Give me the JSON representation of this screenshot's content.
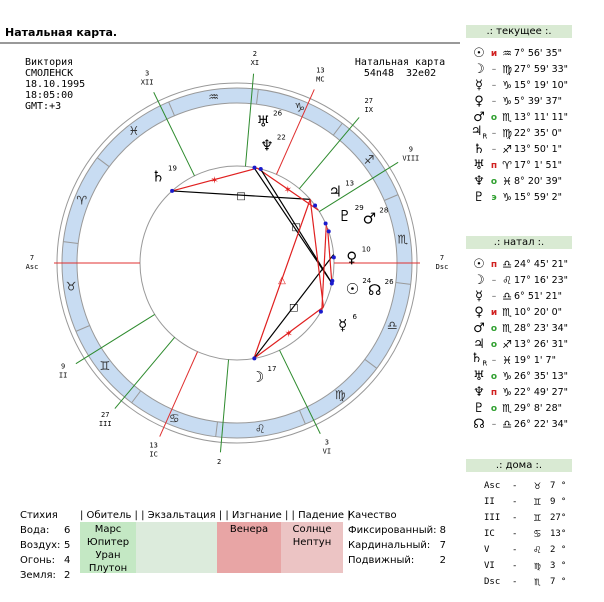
{
  "title": "Натальная карта.",
  "person": {
    "name": "Виктория",
    "city": "СМОЛЕНСК",
    "date": "18.10.1995",
    "time": "18:05:00",
    "gmt": "GMT:+3"
  },
  "chart_header": {
    "label": "Натальная карта",
    "coords": "54n48  32e02"
  },
  "colors": {
    "band": "#c8dcf2",
    "house_line": "#2e8b2e",
    "axis_line": "#e03030",
    "aspect_red": "#e02020",
    "aspect_black": "#000000",
    "panel_header": "#d9ead3"
  },
  "asc_longitude": 37,
  "signs": [
    "♈",
    "♉",
    "♊",
    "♋",
    "♌",
    "♍",
    "♎",
    "♏",
    "♐",
    "♑",
    "♒",
    "♓"
  ],
  "houses": [
    {
      "label": "Asc",
      "deg": "7",
      "lon": 37,
      "axis": true
    },
    {
      "label": "II",
      "deg": "9",
      "lon": 69
    },
    {
      "label": "III",
      "deg": "27",
      "lon": 87
    },
    {
      "label": "IC",
      "deg": "13",
      "lon": 103,
      "axis": true
    },
    {
      "label": "V",
      "deg": "2",
      "lon": 122
    },
    {
      "label": "VI",
      "deg": "3",
      "lon": 153
    },
    {
      "label": "Dsc",
      "deg": "7",
      "lon": 217,
      "axis": true
    },
    {
      "label": "VIII",
      "deg": "9",
      "lon": 249
    },
    {
      "label": "IX",
      "deg": "27",
      "lon": 267
    },
    {
      "label": "MC",
      "deg": "13",
      "lon": 283,
      "axis": true
    },
    {
      "label": "XI",
      "deg": "2",
      "lon": 302
    },
    {
      "label": "XII",
      "deg": "3",
      "lon": 333
    }
  ],
  "chart_planets": [
    {
      "glyph": "☉",
      "deg": "24",
      "lon": 204.8,
      "r": 118
    },
    {
      "glyph": "☊",
      "deg": "26",
      "lon": 206.4,
      "r": 140
    },
    {
      "glyph": "☽",
      "deg": "17",
      "lon": 137.3,
      "r": 115
    },
    {
      "glyph": "☿",
      "deg": "6",
      "lon": 186.9,
      "r": 122
    },
    {
      "glyph": "♀",
      "deg": "10",
      "lon": 220.3,
      "r": 115
    },
    {
      "glyph": "♂",
      "deg": "28",
      "lon": 236,
      "r": 140
    },
    {
      "glyph": "♇",
      "deg": "29",
      "lon": 241,
      "r": 118
    },
    {
      "glyph": "♃",
      "deg": "13",
      "lon": 253.4,
      "r": 122
    },
    {
      "glyph": "♄R",
      "deg": "19",
      "lon": 349,
      "r": 118
    },
    {
      "glyph": "♅",
      "deg": "26",
      "lon": 296.6,
      "r": 145
    },
    {
      "glyph": "♆",
      "deg": "22",
      "lon": 292.8,
      "r": 122
    }
  ],
  "aspects": [
    {
      "a": 349,
      "b": 295,
      "color": "red",
      "mark": "✶"
    },
    {
      "a": 349,
      "b": 258,
      "color": "black",
      "mark": "□"
    },
    {
      "a": 295,
      "b": 250,
      "color": "red",
      "mark": "✶"
    },
    {
      "a": 293,
      "b": 205,
      "color": "black",
      "mark": "□"
    },
    {
      "a": 297,
      "b": 205,
      "color": "black",
      "mark": ""
    },
    {
      "a": 137,
      "b": 258,
      "color": "red",
      "mark": "△"
    },
    {
      "a": 137,
      "b": 222,
      "color": "black",
      "mark": "□"
    },
    {
      "a": 137,
      "b": 190,
      "color": "red",
      "mark": "✶"
    },
    {
      "a": 238,
      "b": 205,
      "color": "red",
      "mark": ""
    },
    {
      "a": 258,
      "b": 190,
      "color": "red",
      "mark": ""
    },
    {
      "a": 240,
      "b": 188,
      "color": "red",
      "mark": ""
    }
  ],
  "current": {
    "header": ".: текущее :.",
    "rows": [
      {
        "glyph": "☉",
        "status": "и",
        "sign": "♒",
        "pos": "7° 56' 35\""
      },
      {
        "glyph": "☽",
        "status": "–",
        "sign": "♍",
        "pos": "27° 59' 33\""
      },
      {
        "glyph": "☿",
        "status": "–",
        "sign": "♑",
        "pos": "15° 19' 10\""
      },
      {
        "glyph": "♀",
        "status": "–",
        "sign": "♑",
        "pos": "5° 39' 37\""
      },
      {
        "glyph": "♂",
        "status": "о",
        "sign": "♏",
        "pos": "13° 11' 11\""
      },
      {
        "glyph": "♃R",
        "status": "–",
        "sign": "♍",
        "pos": "22° 35' 0\""
      },
      {
        "glyph": "♄",
        "status": "–",
        "sign": "♐",
        "pos": "13° 50' 1\""
      },
      {
        "glyph": "♅",
        "status": "п",
        "sign": "♈",
        "pos": "17° 1' 51\""
      },
      {
        "glyph": "♆",
        "status": "о",
        "sign": "♓",
        "pos": "8° 20' 39\""
      },
      {
        "glyph": "♇",
        "status": "э",
        "sign": "♑",
        "pos": "15° 59' 2\""
      }
    ]
  },
  "natal": {
    "header": ".: натал :.",
    "rows": [
      {
        "glyph": "☉",
        "status": "п",
        "sign": "♎",
        "pos": "24° 45' 21\""
      },
      {
        "glyph": "☽",
        "status": "–",
        "sign": "♌",
        "pos": "17° 16' 23\""
      },
      {
        "glyph": "☿",
        "status": "–",
        "sign": "♎",
        "pos": "6° 51' 21\""
      },
      {
        "glyph": "♀",
        "status": "и",
        "sign": "♏",
        "pos": "10° 20' 0\""
      },
      {
        "glyph": "♂",
        "status": "о",
        "sign": "♏",
        "pos": "28° 23' 34\""
      },
      {
        "glyph": "♃",
        "status": "о",
        "sign": "♐",
        "pos": "13° 26' 31\""
      },
      {
        "glyph": "♄R",
        "status": "–",
        "sign": "♓",
        "pos": "19° 1' 7\""
      },
      {
        "glyph": "♅",
        "status": "о",
        "sign": "♑",
        "pos": "26° 35' 13\""
      },
      {
        "glyph": "♆",
        "status": "п",
        "sign": "♑",
        "pos": "22° 49' 27\""
      },
      {
        "glyph": "♇",
        "status": "о",
        "sign": "♏",
        "pos": "29° 8' 28\""
      },
      {
        "glyph": "☊",
        "status": "–",
        "sign": "♎",
        "pos": "26° 22' 34\""
      }
    ]
  },
  "houses_panel": {
    "header": ".: дома :.",
    "rows": [
      {
        "label": "Asc",
        "sign": "♉",
        "deg": "7 °"
      },
      {
        "label": "II",
        "sign": "♊",
        "deg": "9 °"
      },
      {
        "label": "III",
        "sign": "♊",
        "deg": "27°"
      },
      {
        "label": "IC",
        "sign": "♋",
        "deg": "13°"
      },
      {
        "label": "V",
        "sign": "♌",
        "deg": "2 °"
      },
      {
        "label": "VI",
        "sign": "♍",
        "deg": "3 °"
      },
      {
        "label": "Dsc",
        "sign": "♏",
        "deg": "7 °"
      }
    ]
  },
  "stats": {
    "elements_header": "Стихия",
    "elements": [
      {
        "label": "Вода:",
        "value": "6"
      },
      {
        "label": "Воздух:",
        "value": "5"
      },
      {
        "label": "Огонь:",
        "value": "4"
      },
      {
        "label": "Земля:",
        "value": "2"
      }
    ],
    "dignity_header": "| Обитель | | Экзальтация | | Изгнание | | Падение |",
    "rulership": [
      "Марс",
      "Юпитер",
      "Уран",
      "Плутон"
    ],
    "exaltation": [],
    "exile": [
      "Венера"
    ],
    "fall": [
      "Солнце",
      "Нептун"
    ],
    "quality_header": "Качество",
    "qualities": [
      {
        "label": "Фиксированный:",
        "value": "8"
      },
      {
        "label": "Кардинальный:",
        "value": "7"
      },
      {
        "label": "Подвижный:",
        "value": "2"
      }
    ]
  }
}
